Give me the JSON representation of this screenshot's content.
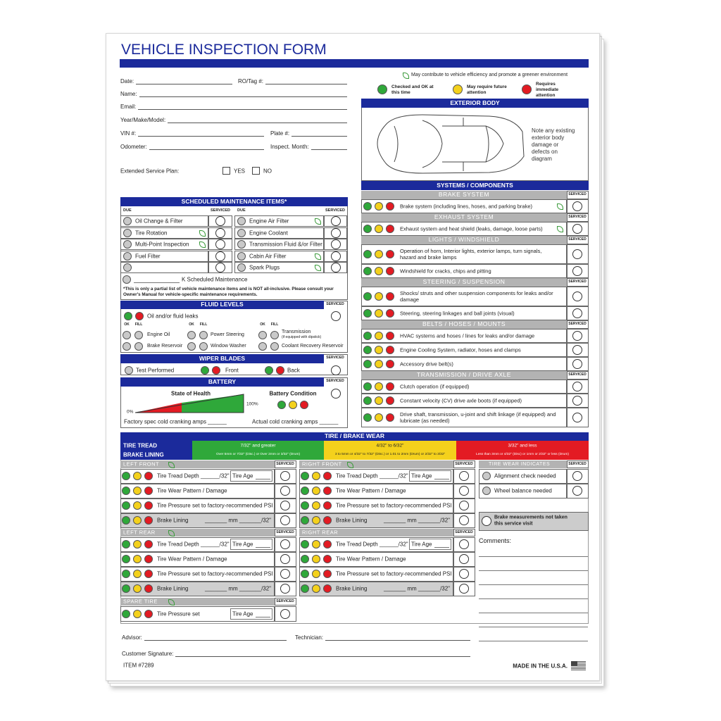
{
  "header": {
    "title": "VEHICLE INSPECTION FORM"
  },
  "customer": {
    "fields": [
      "Date:",
      "RO/Tag #:",
      "Name:",
      "Email:",
      "Year/Make/Model:",
      "VIN #:",
      "Plate #:",
      "Odometer:",
      "Inspect. Month:"
    ],
    "plan": "Extended Service Plan:",
    "yes": "YES",
    "no": "NO"
  },
  "legend": {
    "eco": "May contribute to vehicle efficiency and promote a greener environment",
    "items": [
      {
        "color": "#2fa83a",
        "text": "Checked and OK at this time"
      },
      {
        "color": "#f4d11c",
        "text": "May require future attention"
      },
      {
        "color": "#e31b23",
        "text": "Requires immediate attention"
      }
    ]
  },
  "exterior": {
    "title": "EXTERIOR BODY",
    "note": "Note any existing exterior body damage or defects on diagram"
  },
  "systems": {
    "title": "SYSTEMS / COMPONENTS",
    "serviced": "SERVICED",
    "groups": [
      {
        "name": "BRAKE SYSTEM",
        "items": [
          {
            "text": "Brake system (including lines, hoses, and parking brake)",
            "eco": true
          }
        ]
      },
      {
        "name": "EXHAUST SYSTEM",
        "items": [
          {
            "text": "Exhaust system and heat shield (leaks, damage, loose parts)",
            "eco": true
          }
        ]
      },
      {
        "name": "LIGHTS / WINDSHIELD",
        "items": [
          {
            "text": "Operation of horn, Interior lights, exterior lamps, turn signals, hazard and brake lamps",
            "eco": false
          },
          {
            "text": "Windshield for cracks, chips and pitting",
            "eco": false
          }
        ]
      },
      {
        "name": "STEERING / SUSPENSION",
        "items": [
          {
            "text": "Shocks/ struts and other suspension components for leaks and/or damage",
            "eco": false
          },
          {
            "text": "Steering, steering linkages and ball joints (visual)",
            "eco": false
          }
        ]
      },
      {
        "name": "BELTS / HOSES / MOUNTS",
        "items": [
          {
            "text": "HVAC systems and hoses / lines for leaks and/or damage",
            "eco": false
          },
          {
            "text": "Engine Cooling System, radiator, hoses and clamps",
            "eco": false
          },
          {
            "text": "Accessory drive belt(s)",
            "eco": false
          }
        ]
      },
      {
        "name": "TRANSMISSION / DRIVE AXLE",
        "items": [
          {
            "text": "Clutch operation (if equipped)",
            "eco": false
          },
          {
            "text": "Constant velocity (CV) drive axle boots (if equipped)",
            "eco": false
          },
          {
            "text": "Drive shaft, transmission, u-joint and shift linkage (if equipped) and lubricate (as needed)",
            "eco": false
          }
        ]
      }
    ]
  },
  "maintenance": {
    "title": "SCHEDULED MAINTENANCE ITEMS*",
    "due": "DUE",
    "serviced": "SERVICED",
    "left": [
      {
        "text": "Oil Change & Filter",
        "eco": false
      },
      {
        "text": "Tire Rotation",
        "eco": true
      },
      {
        "text": "Multi-Point Inspection",
        "eco": true
      },
      {
        "text": "Fuel Filter",
        "eco": false
      }
    ],
    "right": [
      {
        "text": "Engine Air Filter",
        "eco": true
      },
      {
        "text": "Engine Coolant",
        "eco": false
      },
      {
        "text": "Transmission Fluid &/or Filter",
        "eco": false
      },
      {
        "text": "Cabin Air Filter",
        "eco": true
      },
      {
        "text": "Spark Plugs",
        "eco": true
      }
    ],
    "k_line": "K Scheduled Maintenance",
    "note": "*This is only a partial list of vehicle maintenance items and is NOT all-inclusive. Please consult your Owner's Manual for vehicle-specific maintenance requirements."
  },
  "fluid": {
    "title": "FLUID LEVELS",
    "serviced": "SERVICED",
    "leaks": "Oil and/or fluid leaks",
    "ok": "OK",
    "fill": "FILL",
    "items": [
      "Engine Oil",
      "Power Steering",
      "Transmission",
      "Brake Reservoir",
      "Window Washer",
      "Coolant Recovery Reservoir"
    ],
    "dipstick": "(if equipped with dipstick)"
  },
  "wiper": {
    "title": "WIPER BLADES",
    "serviced": "SERVICED",
    "test": "Test Performed",
    "front": "Front",
    "back": "Back"
  },
  "battery": {
    "title": "BATTERY",
    "serviced": "SERVICED",
    "health": "State of Health",
    "condition": "Battery Condition",
    "min": "0%",
    "max": "100%",
    "factory": "Factory spec cold cranking amps ______",
    "actual": "Actual cold cranking amps ______"
  },
  "tire": {
    "title": "TIRE / BRAKE WEAR",
    "tread": "TIRE TREAD",
    "lining": "BRAKE LINING",
    "ranges": [
      {
        "color": "#2fa83a",
        "tread": "7/32\" and greater",
        "lining": "Over 5mm or 7/32\" (Disc.) or Over 2mm or 3/32\" (Drum)"
      },
      {
        "color": "#f4d11c",
        "tread": "4/32\" to 6/32\"",
        "lining": "3 to 5mm or 4/32\" to 7/32\" (Disc.) or 1.01 to 2mm (Drum) or 2/32\" to 3/32\""
      },
      {
        "color": "#e31b23",
        "tread": "3/32\" and less",
        "lining": "Less than 3mm or 4/32\" (Disc) or 1mm or 2/32\" or less (Drum)"
      }
    ],
    "serviced": "SERVICED",
    "wheels": [
      {
        "name": "LEFT FRONT",
        "eco": true
      },
      {
        "name": "RIGHT FRONT",
        "eco": true
      },
      {
        "name": "LEFT REAR",
        "eco": true
      },
      {
        "name": "RIGHT REAR",
        "eco": false
      }
    ],
    "rows": {
      "depth": "Tire Tread Depth ______/32\"",
      "age": "Tire Age",
      "pattern": "Tire Wear Pattern / Damage",
      "pressure": "Tire Pressure set to factory-recommended PSI",
      "lining": "Brake Lining",
      "measure": "_______ mm _______/32\""
    },
    "spare": {
      "name": "SPARE TIRE",
      "eco": true,
      "pressure": "Tire Pressure set"
    },
    "wear": {
      "title": "TIRE WEAR INDICATES",
      "items": [
        "Alignment check needed",
        "Wheel balance needed"
      ]
    },
    "brake_note": "Brake measurements not taken this service visit",
    "comments": "Comments:"
  },
  "footer": {
    "advisor": "Advisor:",
    "technician": "Technician:",
    "signature": "Customer Signature:",
    "item": "ITEM #7289",
    "made": "MADE IN THE U.S.A."
  }
}
